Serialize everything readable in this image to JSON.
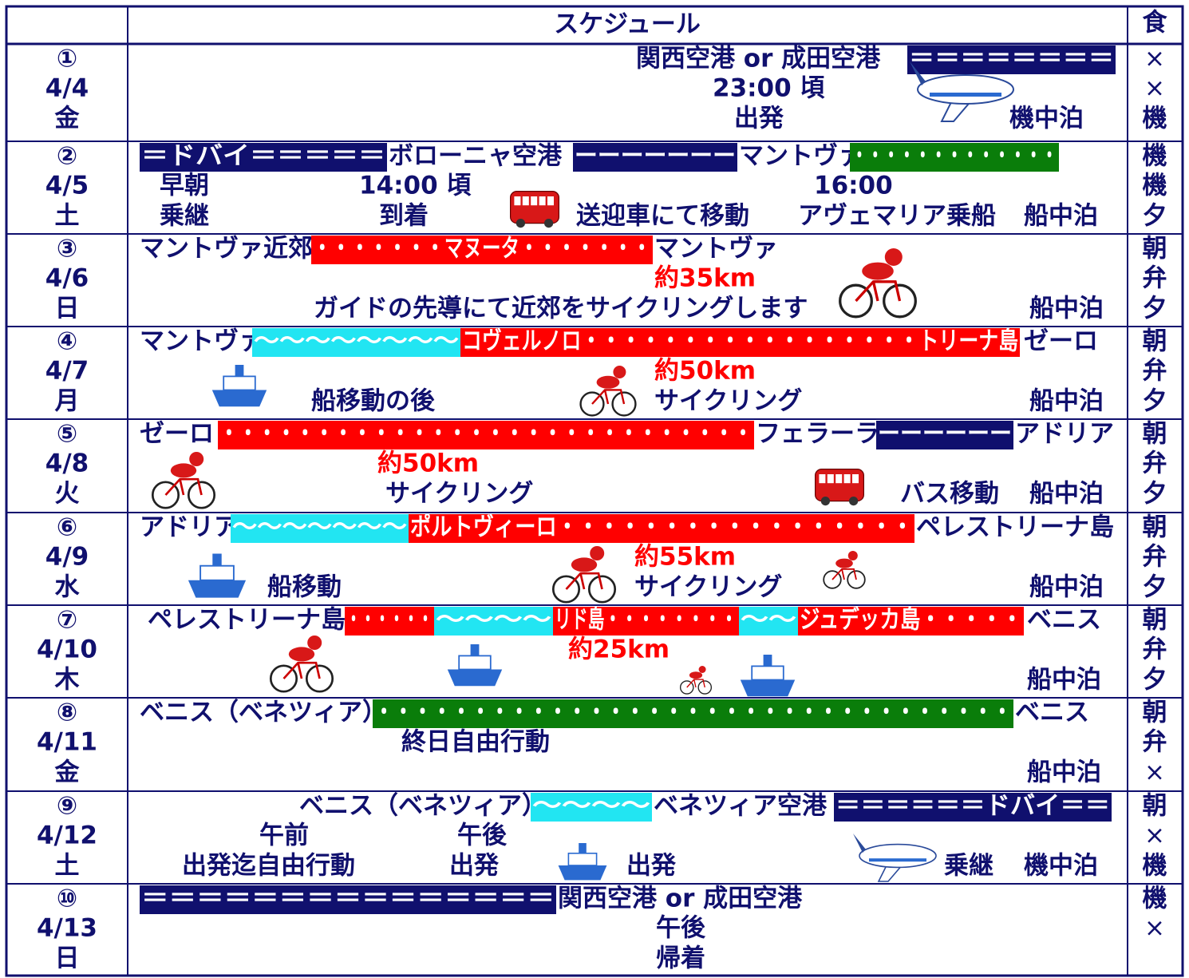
{
  "header": {
    "schedule": "スケジュール",
    "meals": "食"
  },
  "days": [
    {
      "number": "①",
      "date": "4/4",
      "weekday": "金",
      "lines": [
        [
          "関西空港 or 成田空港",
          "＝＝＝＝＝＝＝＝"
        ],
        [
          "23:00 頃"
        ],
        [
          "出発",
          "機中泊"
        ]
      ],
      "meals": [
        "×",
        "×",
        "機"
      ]
    },
    {
      "number": "②",
      "date": "4/5",
      "weekday": "土",
      "lines": [
        [
          "＝ドバイ＝＝＝＝＝",
          "ボローニャ空港",
          "ーーーーーーー",
          "マントヴァ",
          "・・・・・・・・・・・・・"
        ],
        [
          "早朝",
          "14:00 頃",
          "16:00"
        ],
        [
          "乗継",
          "到着",
          "送迎車にて移動",
          "アヴェマリア乗船",
          "船中泊"
        ]
      ],
      "meals": [
        "機",
        "機",
        "夕"
      ]
    },
    {
      "number": "③",
      "date": "4/6",
      "weekday": "日",
      "lines": [
        [
          "マントヴァ近郊",
          "・・・・・・・マヌータ・・・・・・・",
          "マントヴァ"
        ],
        [
          "約35km"
        ],
        [
          "ガイドの先導にて近郊をサイクリングします",
          "船中泊"
        ]
      ],
      "meals": [
        "朝",
        "弁",
        "夕"
      ]
    },
    {
      "number": "④",
      "date": "4/7",
      "weekday": "月",
      "lines": [
        [
          "マントヴァ",
          "〜〜〜〜〜〜〜〜",
          "コヴェルノロ・・・・・・・・・・・・・・・・・トリーナ島",
          "ゼーロ"
        ],
        [
          "約50km"
        ],
        [
          "船移動の後",
          "サイクリング",
          "船中泊"
        ]
      ],
      "meals": [
        "朝",
        "弁",
        "夕"
      ]
    },
    {
      "number": "⑤",
      "date": "4/8",
      "weekday": "火",
      "lines": [
        [
          "ゼーロ",
          "・・・・・・・・・・・・・・・・・・・・・・・・・・・・",
          "フェラーラ",
          "ーーーーーー",
          "アドリア"
        ],
        [
          "約50km"
        ],
        [
          "サイクリング",
          "バス移動",
          "船中泊"
        ]
      ],
      "meals": [
        "朝",
        "弁",
        "夕"
      ]
    },
    {
      "number": "⑥",
      "date": "4/9",
      "weekday": "水",
      "lines": [
        [
          "アドリア",
          "〜〜〜〜〜〜〜",
          "ポルトヴィーロ・・・・・・・・・・・・・・・・・",
          "ペレストリーナ島"
        ],
        [
          "約55km"
        ],
        [
          "船移動",
          "サイクリング",
          "船中泊"
        ]
      ],
      "meals": [
        "朝",
        "弁",
        "夕"
      ]
    },
    {
      "number": "⑦",
      "date": "4/10",
      "weekday": "木",
      "lines": [
        [
          "ペレストリーナ島",
          "・・・・・・",
          "〜〜〜〜",
          "リド島・・・・・・・・",
          "〜〜",
          "ジュデッカ島・・・・・",
          "ベニス"
        ],
        [
          "約25km"
        ],
        [
          "船中泊"
        ]
      ],
      "meals": [
        "朝",
        "弁",
        "夕"
      ]
    },
    {
      "number": "⑧",
      "date": "4/11",
      "weekday": "金",
      "lines": [
        [
          "ベニス（ベネツィア）",
          "・・・・・・・・・・・・・・・・・・・・・・・・・・・・・・・・・",
          "ベニス"
        ],
        [
          "終日自由行動"
        ],
        [
          "船中泊"
        ]
      ],
      "meals": [
        "朝",
        "弁",
        "×"
      ]
    },
    {
      "number": "⑨",
      "date": "4/12",
      "weekday": "土",
      "lines": [
        [
          "ベニス（ベネツィア）",
          "〜〜〜〜",
          "ベネツィア空港",
          "＝＝＝＝＝＝ドバイ＝＝"
        ],
        [
          "午前",
          "午後"
        ],
        [
          "出発迄自由行動",
          "出発",
          "出発",
          "乗継",
          "機中泊"
        ]
      ],
      "meals": [
        "朝",
        "×",
        "機"
      ]
    },
    {
      "number": "⑩",
      "date": "4/13",
      "weekday": "日",
      "lines": [
        [
          "＝＝＝＝＝＝＝＝＝＝＝＝＝＝＝",
          "関西空港 or 成田空港"
        ],
        [
          "午後"
        ],
        [
          "帰着"
        ]
      ],
      "meals": [
        "機",
        "×"
      ]
    }
  ]
}
